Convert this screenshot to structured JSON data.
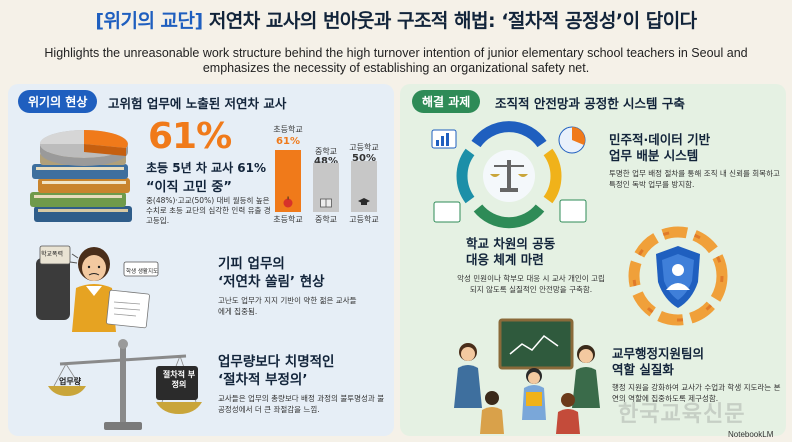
{
  "header": {
    "tag": "[위기의 교단]",
    "title": "저연차 교사의 번아웃과 구조적 해법: ‘절차적 공정성’이 답이다",
    "subtitle": "Highlights the unreasonable work structure behind the high turnover intention of junior elementary school teachers in Seoul and emphasizes the necessity of establishing an organizational safety net."
  },
  "left": {
    "pill": "위기의 현상",
    "heading": "고위험 업무에 노출된 저연차 교사",
    "stat": {
      "big": "61%",
      "line": "초등 5년 차 교사 61%",
      "quote": "“이직 고민 중”",
      "desc": "중(48%)·고교(50%) 대비 월등히 높은 수치로 초등 교단의 심각한 인력 유출 경고등입.",
      "chart": {
        "bars": [
          {
            "top": "초등학교",
            "value": "61%",
            "num": 61,
            "cat": "초등학교",
            "color": "#f07a1a"
          },
          {
            "top": "중학교",
            "value": "48%",
            "num": 48,
            "cat": "중학교",
            "color": "#c7c7c7"
          },
          {
            "top": "고등학교",
            "value": "50%",
            "num": 50,
            "cat": "고등학교",
            "color": "#c7c7c7"
          }
        ]
      }
    },
    "item2": {
      "title1": "기피 업무의",
      "title2": "‘저연차 쏠림’ 현상",
      "desc": "고난도 업무가 지지 기반이 약한 젊은 교사들에게 집중됨.",
      "sign": "학교폭력",
      "paper": "학생 생활지도"
    },
    "item3": {
      "title1": "업무량보다 치명적인",
      "title2": "‘절차적 부정의’",
      "desc": "교사들은 업무의 총량보다 배정 과정의 불투명성과 불공정성에서 더 큰 좌절감을 느낌.",
      "scale_left": "업무량",
      "scale_right": "절차적 부정의"
    }
  },
  "right": {
    "pill": "해결 과제",
    "heading": "조직적 안전망과 공정한 시스템 구축",
    "item1": {
      "title1": "민주적·데이터 기반",
      "title2": "업무 배분 시스템",
      "desc": "투명한 업무 배정 절차를 통해 조직 내 신뢰를 회복하고 특정인 독박 업무를 방지함."
    },
    "item2": {
      "title1": "학교 차원의 공동",
      "title2": "대응 체계 마련",
      "desc": "악성 민원이나 학부모 대응 시 교사 개인이 고립되지 않도록 실질적인 안전망을 구축함."
    },
    "item3": {
      "title1": "교무행정지원팀의",
      "title2": "역할 실질화",
      "desc": "행정 지원을 강화하여 교사가 수업과 학생 지도라는 본연의 역할에 집중하도록 제구성함."
    }
  },
  "watermark": "한국교육신문",
  "credit": "NotebookLM"
}
